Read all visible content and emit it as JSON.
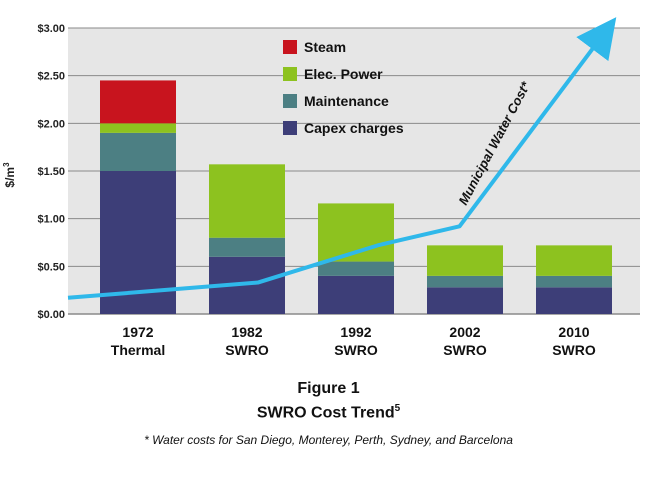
{
  "colors": {
    "plot_bg": "#e6e6e6",
    "grid": "#8a8a8a",
    "steam": "#c8141e",
    "elec_power": "#8dc21f",
    "maintenance": "#4c7f83",
    "capex": "#3d3e78",
    "line": "#2fb8ea"
  },
  "chart_data": {
    "type": "bar",
    "stacked": true,
    "categories": [
      [
        "1972",
        "Thermal"
      ],
      [
        "1982",
        "SWRO"
      ],
      [
        "1992",
        "SWRO"
      ],
      [
        "2002",
        "SWRO"
      ],
      [
        "2010",
        "SWRO"
      ]
    ],
    "series": [
      {
        "name": "Capex charges",
        "color": "#3d3e78",
        "values": [
          1.5,
          0.6,
          0.4,
          0.28,
          0.28
        ]
      },
      {
        "name": "Maintenance",
        "color": "#4c7f83",
        "values": [
          0.4,
          0.2,
          0.15,
          0.12,
          0.12
        ]
      },
      {
        "name": "Elec. Power",
        "color": "#8dc21f",
        "values": [
          0.1,
          0.77,
          0.61,
          0.32,
          0.32
        ]
      },
      {
        "name": "Steam",
        "color": "#c8141e",
        "values": [
          0.45,
          0,
          0,
          0,
          0
        ]
      }
    ],
    "line_series": {
      "name": "Municipal Water Cost*",
      "points": [
        [
          -0.3,
          0.17
        ],
        [
          1.1,
          0.33
        ],
        [
          2.2,
          0.72
        ],
        [
          2.95,
          0.92
        ],
        [
          4.3,
          2.98
        ]
      ]
    },
    "ylabel": "$/m",
    "ylabel_sup": "3",
    "yticks": [
      "$0.00",
      "$0.50",
      "$1.00",
      "$1.50",
      "$2.00",
      "$2.50",
      "$3.00"
    ],
    "ylim": [
      0,
      3.0
    ],
    "grid": true,
    "legend_position": "top-center",
    "legend_order": [
      "Steam",
      "Elec. Power",
      "Maintenance",
      "Capex charges"
    ]
  },
  "figure": {
    "label": "Figure 1",
    "caption": "SWRO Cost Trend",
    "caption_sup": "5",
    "note": "* Water costs for San Diego, Monterey, Perth, Sydney, and Barcelona"
  }
}
